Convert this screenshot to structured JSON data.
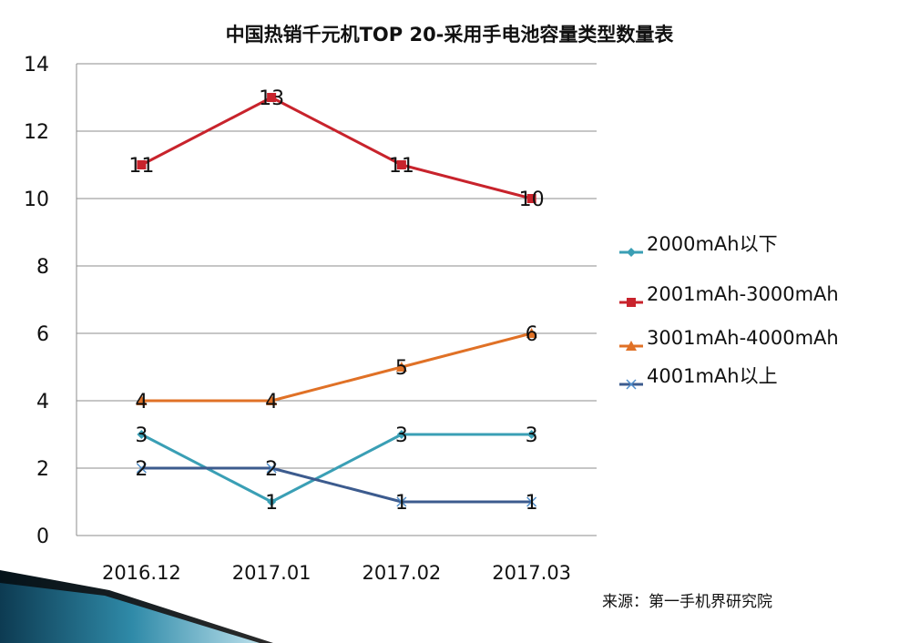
{
  "chart_data": {
    "type": "line",
    "title": "中国热销千元机TOP 20-采用手电池容量类型数量表",
    "categories": [
      "2016.12",
      "2017.01",
      "2017.02",
      "2017.03"
    ],
    "ylim": [
      0,
      14
    ],
    "yticks": [
      0,
      2,
      4,
      6,
      8,
      10,
      12,
      14
    ],
    "grid": true,
    "legend_position": "right",
    "xlabel": "",
    "ylabel": "",
    "series": [
      {
        "name": "2000mAh以下",
        "values": [
          3,
          1,
          3,
          3
        ],
        "color": "#3A9FB5",
        "marker": "diamond"
      },
      {
        "name": "2001mAh-3000mAh",
        "values": [
          11,
          13,
          11,
          10
        ],
        "color": "#C8232C",
        "marker": "square"
      },
      {
        "name": "3001mAh-4000mAh",
        "values": [
          4,
          4,
          5,
          6
        ],
        "color": "#E07126",
        "marker": "triangle"
      },
      {
        "name": "4001mAh以上",
        "values": [
          2,
          2,
          1,
          1
        ],
        "color": "#3C5B8E",
        "marker": "x"
      }
    ]
  },
  "source": "来源：第一手机界研究院"
}
